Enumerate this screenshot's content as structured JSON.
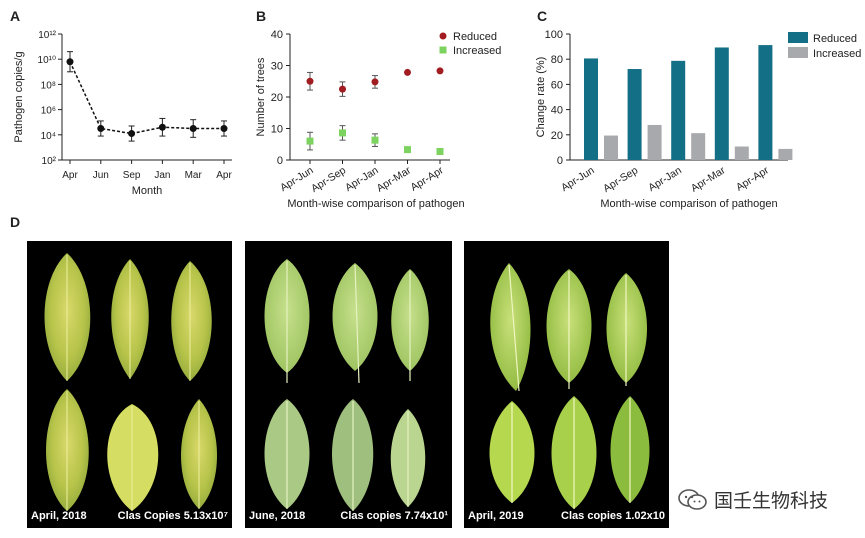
{
  "panels": {
    "a": "A",
    "b": "B",
    "c": "C",
    "d": "D"
  },
  "chart_data": [
    {
      "panel": "A",
      "type": "line",
      "ylabel": "Pathogen copies/g",
      "xlabel": "Month",
      "yscale": "log",
      "ylim": [
        100,
        1000000000000
      ],
      "yticks": [
        "10²",
        "10⁴",
        "10⁶",
        "10⁸",
        "10¹⁰",
        "10¹²"
      ],
      "ytick_values": [
        2,
        4,
        6,
        8,
        10,
        12
      ],
      "categories": [
        "Apr",
        "Jun",
        "Sep",
        "Jan",
        "Mar",
        "Apr"
      ],
      "values_log10": [
        9.8,
        4.5,
        4.1,
        4.6,
        4.5,
        4.5
      ],
      "err_log10": [
        0.8,
        0.6,
        0.6,
        0.7,
        0.7,
        0.6
      ],
      "line_style": "dashed",
      "color": "#111111"
    },
    {
      "panel": "B",
      "type": "scatter",
      "ylabel": "Number of trees",
      "xlabel": "Month-wise comparison of pathogen",
      "ylim": [
        0,
        40
      ],
      "yticks": [
        0,
        10,
        20,
        30,
        40
      ],
      "categories": [
        "Apr-Jun",
        "Apr-Sep",
        "Apr-Jan",
        "Apr-Mar",
        "Apr-Apr"
      ],
      "series": [
        {
          "name": "Reduced",
          "color": "#a11d21",
          "marker": "circle",
          "values": [
            25,
            22.5,
            24.8,
            27.8,
            28.3
          ],
          "err": [
            2.8,
            2.3,
            2,
            0,
            0
          ]
        },
        {
          "name": "Increased",
          "color": "#7dd35f",
          "marker": "square",
          "values": [
            6,
            8.6,
            6.3,
            3.3,
            2.7
          ],
          "err": [
            2.8,
            2.3,
            2,
            0,
            0
          ]
        }
      ],
      "legend": "top-right"
    },
    {
      "panel": "C",
      "type": "bar",
      "ylabel": "Change rate (%)",
      "xlabel": "Month-wise comparison of pathogen",
      "ylim": [
        0,
        100
      ],
      "yticks": [
        0,
        20,
        40,
        60,
        80,
        100
      ],
      "categories": [
        "Apr-Jun",
        "Apr-Sep",
        "Apr-Jan",
        "Apr-Mar",
        "Apr-Apr"
      ],
      "series": [
        {
          "name": "Reduced",
          "color": "#136f85",
          "values": [
            80.6,
            72.2,
            78.7,
            89.3,
            91.2
          ]
        },
        {
          "name": "Increased",
          "color": "#a7a9ac",
          "values": [
            19.4,
            27.8,
            21.3,
            10.7,
            8.8
          ]
        }
      ],
      "legend": "top-right"
    }
  ],
  "photos": [
    {
      "left_caption": "April, 2018",
      "right_caption": "Clas Copies 5.13x10⁷"
    },
    {
      "left_caption": "June, 2018",
      "right_caption": "Clas copies 7.74x10¹"
    },
    {
      "left_caption": "April, 2019",
      "right_caption": "Clas copies 1.02x10"
    }
  ],
  "watermark": {
    "text": "国壬生物科技"
  }
}
